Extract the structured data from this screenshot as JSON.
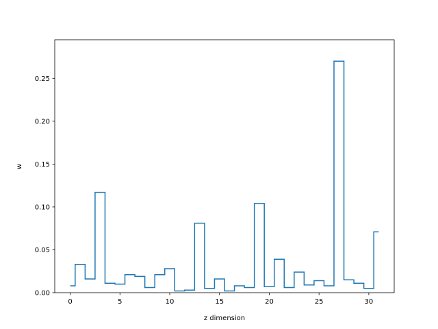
{
  "chart_data": {
    "type": "line",
    "style": "step",
    "title": "",
    "xlabel": "z dimension",
    "ylabel": "w",
    "xlim": [
      -1.55,
      32.55
    ],
    "ylim": [
      0,
      0.295
    ],
    "x_ticks": [
      0,
      5,
      10,
      15,
      20,
      25,
      30
    ],
    "x_tick_labels": [
      "0",
      "5",
      "10",
      "15",
      "20",
      "25",
      "30"
    ],
    "y_ticks": [
      0.0,
      0.05,
      0.1,
      0.15,
      0.2,
      0.25
    ],
    "y_tick_labels": [
      "0.00",
      "0.05",
      "0.10",
      "0.15",
      "0.20",
      "0.25"
    ],
    "grid": false,
    "line_color": "#1f77b4",
    "series": [
      {
        "x": [
          0,
          1,
          2,
          3,
          4,
          5,
          6,
          7,
          8,
          9,
          10,
          11,
          12,
          13,
          14,
          15,
          16,
          17,
          18,
          19,
          20,
          21,
          22,
          23,
          24,
          25,
          26,
          27,
          28,
          29,
          30,
          31
        ],
        "values": [
          0.008,
          0.033,
          0.016,
          0.117,
          0.011,
          0.01,
          0.021,
          0.019,
          0.006,
          0.021,
          0.028,
          0.002,
          0.003,
          0.081,
          0.005,
          0.016,
          0.002,
          0.008,
          0.006,
          0.104,
          0.007,
          0.039,
          0.006,
          0.024,
          0.009,
          0.014,
          0.008,
          0.27,
          0.015,
          0.011,
          0.005,
          0.071
        ]
      }
    ]
  }
}
